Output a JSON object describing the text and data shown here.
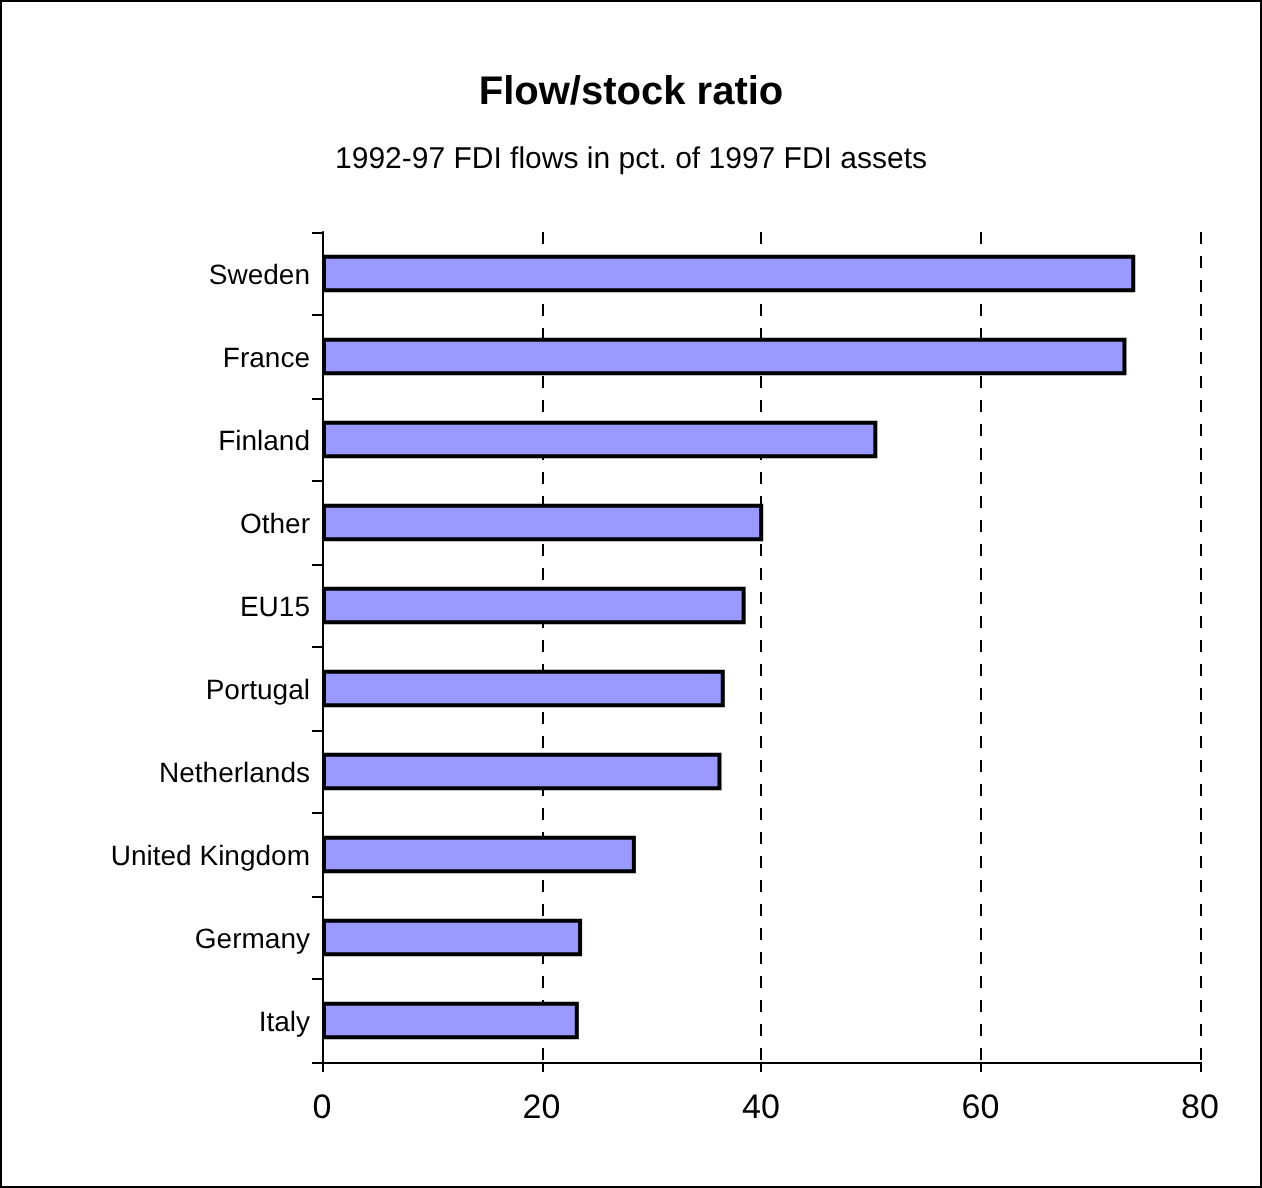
{
  "chart_data": {
    "type": "bar",
    "orientation": "horizontal",
    "title": "Flow/stock ratio",
    "subtitle": "1992-97 FDI flows in pct. of 1997 FDI assets",
    "categories": [
      "Sweden",
      "France",
      "Finland",
      "Other",
      "EU15",
      "Portugal",
      "Netherlands",
      "United Kingdom",
      "Germany",
      "Italy"
    ],
    "values": [
      74.1,
      73.3,
      50.6,
      40.2,
      38.6,
      36.7,
      36.4,
      28.6,
      23.7,
      23.4
    ],
    "color": "#9999ff",
    "xlim": [
      0,
      80
    ],
    "xticks": [
      0,
      20,
      40,
      60,
      80
    ],
    "grid": "x"
  }
}
